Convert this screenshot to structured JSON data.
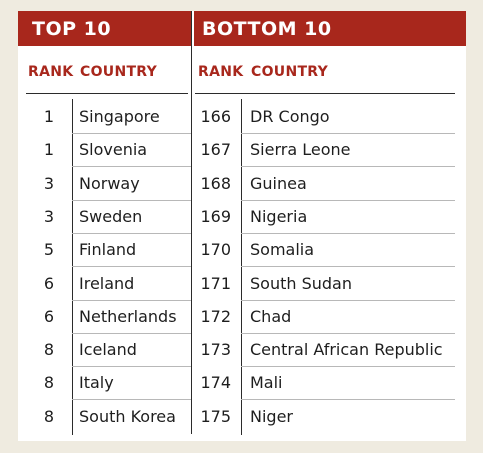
{
  "headers": {
    "top": "TOP 10",
    "bottom": "BOTTOM 10",
    "rank": "RANK",
    "country": "COUNTRY"
  },
  "top10": [
    {
      "rank": "1",
      "country": "Singapore"
    },
    {
      "rank": "1",
      "country": "Slovenia"
    },
    {
      "rank": "3",
      "country": "Norway"
    },
    {
      "rank": "3",
      "country": "Sweden"
    },
    {
      "rank": "5",
      "country": "Finland"
    },
    {
      "rank": "6",
      "country": "Ireland"
    },
    {
      "rank": "6",
      "country": "Netherlands"
    },
    {
      "rank": "8",
      "country": "Iceland"
    },
    {
      "rank": "8",
      "country": "Italy"
    },
    {
      "rank": "8",
      "country": "South Korea"
    }
  ],
  "bottom10": [
    {
      "rank": "166",
      "country": "DR Congo"
    },
    {
      "rank": "167",
      "country": "Sierra Leone"
    },
    {
      "rank": "168",
      "country": "Guinea"
    },
    {
      "rank": "169",
      "country": "Nigeria"
    },
    {
      "rank": "170",
      "country": "Somalia"
    },
    {
      "rank": "171",
      "country": "South Sudan"
    },
    {
      "rank": "172",
      "country": "Chad"
    },
    {
      "rank": "173",
      "country": "Central African Republic"
    },
    {
      "rank": "174",
      "country": "Mali"
    },
    {
      "rank": "175",
      "country": "Niger"
    }
  ],
  "colors": {
    "accent": "#a8271c",
    "background": "#efebe0",
    "card": "#ffffff"
  }
}
